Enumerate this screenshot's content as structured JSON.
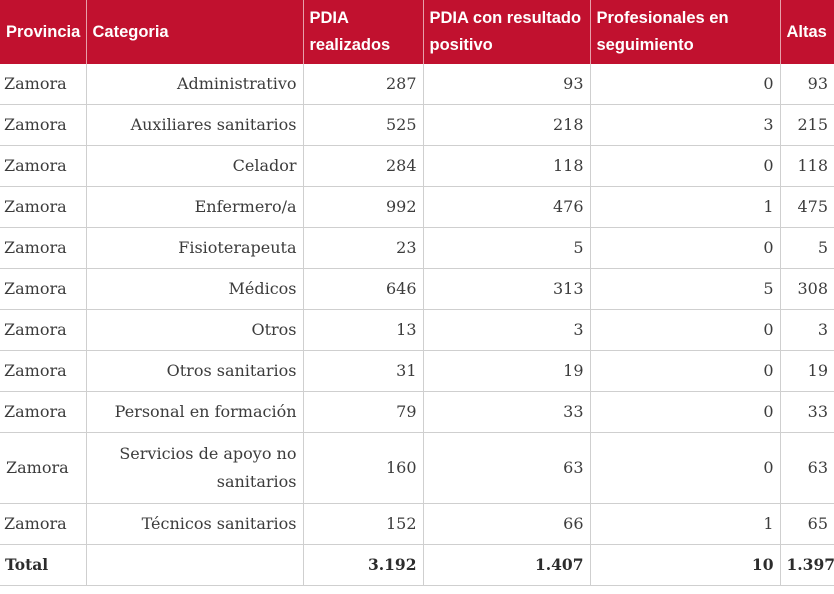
{
  "table": {
    "headers": [
      "Provincia",
      "Categoria",
      "PDIA realizados",
      "PDIA con resultado positivo",
      "Profesionales en seguimiento",
      "Altas"
    ],
    "rows": [
      {
        "provincia": "Zamora",
        "categoria": "Administrativo",
        "pdia_realizados": "287",
        "pdia_positivo": "93",
        "seguimiento": "0",
        "altas": "93"
      },
      {
        "provincia": "Zamora",
        "categoria": "Auxiliares sanitarios",
        "pdia_realizados": "525",
        "pdia_positivo": "218",
        "seguimiento": "3",
        "altas": "215"
      },
      {
        "provincia": "Zamora",
        "categoria": "Celador",
        "pdia_realizados": "284",
        "pdia_positivo": "118",
        "seguimiento": "0",
        "altas": "118"
      },
      {
        "provincia": "Zamora",
        "categoria": "Enfermero/a",
        "pdia_realizados": "992",
        "pdia_positivo": "476",
        "seguimiento": "1",
        "altas": "475"
      },
      {
        "provincia": "Zamora",
        "categoria": "Fisioterapeuta",
        "pdia_realizados": "23",
        "pdia_positivo": "5",
        "seguimiento": "0",
        "altas": "5"
      },
      {
        "provincia": "Zamora",
        "categoria": "Médicos",
        "pdia_realizados": "646",
        "pdia_positivo": "313",
        "seguimiento": "5",
        "altas": "308"
      },
      {
        "provincia": "Zamora",
        "categoria": "Otros",
        "pdia_realizados": "13",
        "pdia_positivo": "3",
        "seguimiento": "0",
        "altas": "3"
      },
      {
        "provincia": "Zamora",
        "categoria": "Otros sanitarios",
        "pdia_realizados": "31",
        "pdia_positivo": "19",
        "seguimiento": "0",
        "altas": "19"
      },
      {
        "provincia": "Zamora",
        "categoria": "Personal en formación",
        "pdia_realizados": "79",
        "pdia_positivo": "33",
        "seguimiento": "0",
        "altas": "33"
      },
      {
        "provincia": "Zamora",
        "categoria": "Servicios de apoyo no sanitarios",
        "pdia_realizados": "160",
        "pdia_positivo": "63",
        "seguimiento": "0",
        "altas": "63"
      },
      {
        "provincia": "Zamora",
        "categoria": "Técnicos sanitarios",
        "pdia_realizados": "152",
        "pdia_positivo": "66",
        "seguimiento": "1",
        "altas": "65"
      }
    ],
    "total": {
      "label": "Total",
      "categoria": "",
      "pdia_realizados": "3.192",
      "pdia_positivo": "1.407",
      "seguimiento": "10",
      "altas": "1.397"
    }
  },
  "colors": {
    "header_background": "#c1112f",
    "header_text": "#ffffff",
    "grid_lines": "#cfcfcf"
  }
}
